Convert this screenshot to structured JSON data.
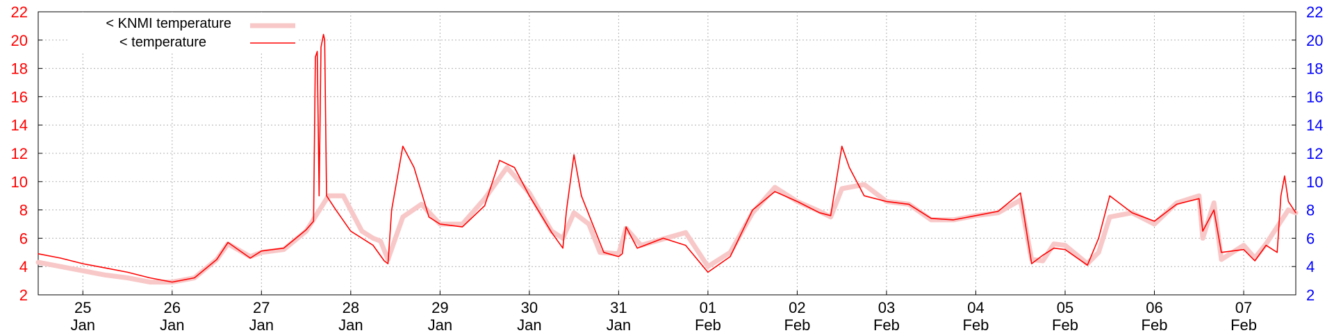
{
  "chart_data": {
    "type": "line",
    "ylim": [
      2,
      22
    ],
    "y_ticks": [
      2,
      4,
      6,
      8,
      10,
      12,
      14,
      16,
      18,
      20,
      22
    ],
    "x_range": [
      "2024-01-24T12:00",
      "2024-02-07T14:00"
    ],
    "x_ticks": [
      {
        "day": "25",
        "month": "Jan"
      },
      {
        "day": "26",
        "month": "Jan"
      },
      {
        "day": "27",
        "month": "Jan"
      },
      {
        "day": "28",
        "month": "Jan"
      },
      {
        "day": "29",
        "month": "Jan"
      },
      {
        "day": "30",
        "month": "Jan"
      },
      {
        "day": "31",
        "month": "Jan"
      },
      {
        "day": "01",
        "month": "Feb"
      },
      {
        "day": "02",
        "month": "Feb"
      },
      {
        "day": "03",
        "month": "Feb"
      },
      {
        "day": "04",
        "month": "Feb"
      },
      {
        "day": "05",
        "month": "Feb"
      },
      {
        "day": "06",
        "month": "Feb"
      },
      {
        "day": "07",
        "month": "Feb"
      }
    ],
    "grid": true,
    "legend_position": "top-left",
    "series": [
      {
        "name": "< KNMI temperature",
        "color": "#f8c8c8",
        "points": [
          [
            "2024-01-24T12:00",
            4.3
          ],
          [
            "2024-01-24T18:00",
            4.0
          ],
          [
            "2024-01-25T00:00",
            3.7
          ],
          [
            "2024-01-25T06:00",
            3.4
          ],
          [
            "2024-01-25T12:00",
            3.2
          ],
          [
            "2024-01-25T18:00",
            2.9
          ],
          [
            "2024-01-26T00:00",
            2.9
          ],
          [
            "2024-01-26T06:00",
            3.2
          ],
          [
            "2024-01-26T12:00",
            4.5
          ],
          [
            "2024-01-26T15:00",
            5.6
          ],
          [
            "2024-01-26T21:00",
            4.7
          ],
          [
            "2024-01-27T00:00",
            5.0
          ],
          [
            "2024-01-27T06:00",
            5.2
          ],
          [
            "2024-01-27T12:00",
            6.5
          ],
          [
            "2024-01-27T18:00",
            9.0
          ],
          [
            "2024-01-27T22:00",
            9.0
          ],
          [
            "2024-01-28T03:00",
            6.5
          ],
          [
            "2024-01-28T06:00",
            6.0
          ],
          [
            "2024-01-28T08:00",
            5.8
          ],
          [
            "2024-01-28T10:00",
            4.5
          ],
          [
            "2024-01-28T14:00",
            7.5
          ],
          [
            "2024-01-28T19:00",
            8.4
          ],
          [
            "2024-01-29T00:00",
            7.0
          ],
          [
            "2024-01-29T06:00",
            7.0
          ],
          [
            "2024-01-29T12:00",
            8.8
          ],
          [
            "2024-01-29T18:00",
            11.0
          ],
          [
            "2024-01-30T00:00",
            9.2
          ],
          [
            "2024-01-30T06:00",
            6.5
          ],
          [
            "2024-01-30T09:00",
            6.0
          ],
          [
            "2024-01-30T12:00",
            7.8
          ],
          [
            "2024-01-30T16:00",
            7.0
          ],
          [
            "2024-01-30T19:00",
            5.0
          ],
          [
            "2024-01-31T00:00",
            4.9
          ],
          [
            "2024-01-31T02:00",
            6.7
          ],
          [
            "2024-01-31T06:00",
            5.5
          ],
          [
            "2024-01-31T18:00",
            6.4
          ],
          [
            "2024-02-01T00:00",
            4.0
          ],
          [
            "2024-02-01T06:00",
            5.0
          ],
          [
            "2024-02-01T12:00",
            7.8
          ],
          [
            "2024-02-01T18:00",
            9.6
          ],
          [
            "2024-02-02T00:00",
            8.6
          ],
          [
            "2024-02-02T06:00",
            7.9
          ],
          [
            "2024-02-02T09:00",
            7.5
          ],
          [
            "2024-02-02T12:00",
            9.5
          ],
          [
            "2024-02-02T18:00",
            9.8
          ],
          [
            "2024-02-03T00:00",
            8.6
          ],
          [
            "2024-02-03T06:00",
            8.4
          ],
          [
            "2024-02-03T12:00",
            7.3
          ],
          [
            "2024-02-03T18:00",
            7.3
          ],
          [
            "2024-02-04T00:00",
            7.6
          ],
          [
            "2024-02-04T06:00",
            7.8
          ],
          [
            "2024-02-04T12:00",
            8.7
          ],
          [
            "2024-02-04T15:00",
            4.5
          ],
          [
            "2024-02-04T18:00",
            4.4
          ],
          [
            "2024-02-04T21:00",
            5.6
          ],
          [
            "2024-02-05T00:00",
            5.5
          ],
          [
            "2024-02-05T06:00",
            4.2
          ],
          [
            "2024-02-05T09:00",
            5.0
          ],
          [
            "2024-02-05T12:00",
            7.5
          ],
          [
            "2024-02-05T18:00",
            7.8
          ],
          [
            "2024-02-06T00:00",
            7.0
          ],
          [
            "2024-02-06T06:00",
            8.5
          ],
          [
            "2024-02-06T12:00",
            9.0
          ],
          [
            "2024-02-06T13:00",
            6.0
          ],
          [
            "2024-02-06T16:00",
            8.5
          ],
          [
            "2024-02-06T18:00",
            4.5
          ],
          [
            "2024-02-07T00:00",
            5.5
          ],
          [
            "2024-02-07T03:00",
            4.6
          ],
          [
            "2024-02-07T06:00",
            5.6
          ],
          [
            "2024-02-07T12:00",
            8.0
          ],
          [
            "2024-02-07T14:00",
            7.8
          ]
        ]
      },
      {
        "name": "< temperature",
        "color": "#ff0000",
        "points": [
          [
            "2024-01-24T12:00",
            4.9
          ],
          [
            "2024-01-24T18:00",
            4.6
          ],
          [
            "2024-01-25T00:00",
            4.2
          ],
          [
            "2024-01-25T06:00",
            3.9
          ],
          [
            "2024-01-25T12:00",
            3.6
          ],
          [
            "2024-01-25T18:00",
            3.2
          ],
          [
            "2024-01-26T00:00",
            2.9
          ],
          [
            "2024-01-26T06:00",
            3.2
          ],
          [
            "2024-01-26T12:00",
            4.5
          ],
          [
            "2024-01-26T15:00",
            5.7
          ],
          [
            "2024-01-26T21:00",
            4.6
          ],
          [
            "2024-01-27T00:00",
            5.1
          ],
          [
            "2024-01-27T06:00",
            5.3
          ],
          [
            "2024-01-27T12:00",
            6.6
          ],
          [
            "2024-01-27T14:00",
            7.2
          ],
          [
            "2024-01-27T14:30",
            18.8
          ],
          [
            "2024-01-27T15:00",
            19.2
          ],
          [
            "2024-01-27T15:30",
            9.0
          ],
          [
            "2024-01-27T16:00",
            19.5
          ],
          [
            "2024-01-27T16:40",
            20.4
          ],
          [
            "2024-01-27T17:00",
            20.0
          ],
          [
            "2024-01-27T17:30",
            9.0
          ],
          [
            "2024-01-27T20:00",
            8.0
          ],
          [
            "2024-01-28T00:00",
            6.5
          ],
          [
            "2024-01-28T06:00",
            5.5
          ],
          [
            "2024-01-28T09:00",
            4.4
          ],
          [
            "2024-01-28T10:00",
            4.2
          ],
          [
            "2024-01-28T11:00",
            8.0
          ],
          [
            "2024-01-28T14:00",
            12.5
          ],
          [
            "2024-01-28T17:00",
            11.0
          ],
          [
            "2024-01-28T21:00",
            7.5
          ],
          [
            "2024-01-29T00:00",
            7.0
          ],
          [
            "2024-01-29T06:00",
            6.8
          ],
          [
            "2024-01-29T12:00",
            8.3
          ],
          [
            "2024-01-29T16:00",
            11.5
          ],
          [
            "2024-01-29T20:00",
            11.0
          ],
          [
            "2024-01-30T00:00",
            9.0
          ],
          [
            "2024-01-30T06:00",
            6.4
          ],
          [
            "2024-01-30T09:00",
            5.3
          ],
          [
            "2024-01-30T10:00",
            8.0
          ],
          [
            "2024-01-30T12:00",
            11.9
          ],
          [
            "2024-01-30T14:00",
            9.0
          ],
          [
            "2024-01-30T20:00",
            5.0
          ],
          [
            "2024-01-31T00:00",
            4.7
          ],
          [
            "2024-01-31T01:00",
            4.9
          ],
          [
            "2024-01-31T02:00",
            6.8
          ],
          [
            "2024-01-31T05:00",
            5.3
          ],
          [
            "2024-01-31T12:00",
            6.0
          ],
          [
            "2024-01-31T18:00",
            5.5
          ],
          [
            "2024-02-01T00:00",
            3.6
          ],
          [
            "2024-02-01T06:00",
            4.7
          ],
          [
            "2024-02-01T12:00",
            8.0
          ],
          [
            "2024-02-01T18:00",
            9.3
          ],
          [
            "2024-02-02T00:00",
            8.6
          ],
          [
            "2024-02-02T06:00",
            7.8
          ],
          [
            "2024-02-02T09:00",
            7.6
          ],
          [
            "2024-02-02T12:00",
            12.5
          ],
          [
            "2024-02-02T14:00",
            11.0
          ],
          [
            "2024-02-02T18:00",
            9.0
          ],
          [
            "2024-02-03T00:00",
            8.6
          ],
          [
            "2024-02-03T06:00",
            8.4
          ],
          [
            "2024-02-03T12:00",
            7.4
          ],
          [
            "2024-02-03T18:00",
            7.3
          ],
          [
            "2024-02-04T00:00",
            7.6
          ],
          [
            "2024-02-04T06:00",
            7.9
          ],
          [
            "2024-02-04T12:00",
            9.2
          ],
          [
            "2024-02-04T15:00",
            4.2
          ],
          [
            "2024-02-04T18:00",
            4.8
          ],
          [
            "2024-02-04T21:00",
            5.3
          ],
          [
            "2024-02-05T00:00",
            5.2
          ],
          [
            "2024-02-05T06:00",
            4.1
          ],
          [
            "2024-02-05T09:00",
            6.0
          ],
          [
            "2024-02-05T12:00",
            9.0
          ],
          [
            "2024-02-05T18:00",
            7.8
          ],
          [
            "2024-02-06T00:00",
            7.2
          ],
          [
            "2024-02-06T06:00",
            8.4
          ],
          [
            "2024-02-06T12:00",
            8.8
          ],
          [
            "2024-02-06T13:00",
            6.5
          ],
          [
            "2024-02-06T16:00",
            8.0
          ],
          [
            "2024-02-06T18:00",
            5.0
          ],
          [
            "2024-02-07T00:00",
            5.2
          ],
          [
            "2024-02-07T03:00",
            4.4
          ],
          [
            "2024-02-07T06:00",
            5.5
          ],
          [
            "2024-02-07T09:00",
            5.0
          ],
          [
            "2024-02-07T10:00",
            9.0
          ],
          [
            "2024-02-07T11:00",
            10.4
          ],
          [
            "2024-02-07T12:00",
            8.6
          ],
          [
            "2024-02-07T14:00",
            7.8
          ]
        ]
      }
    ]
  }
}
